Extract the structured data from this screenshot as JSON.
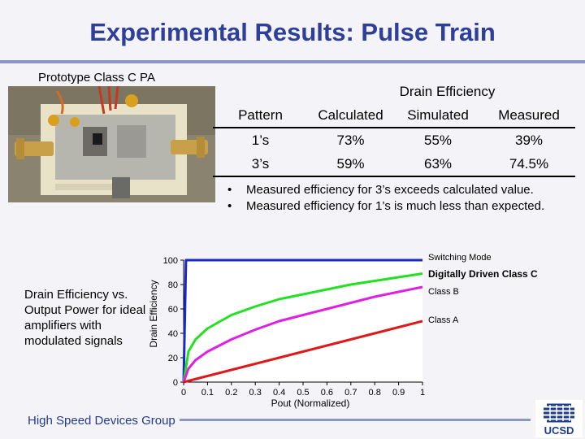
{
  "title": "Experimental Results: Pulse Train",
  "prototype_label": "Prototype Class C PA",
  "table": {
    "group_header": "Drain Efficiency",
    "headers": [
      "Pattern",
      "Calculated",
      "Simulated",
      "Measured"
    ],
    "rows": [
      [
        "1’s",
        "73%",
        "55%",
        "39%"
      ],
      [
        "3’s",
        "59%",
        "63%",
        "74.5%"
      ]
    ]
  },
  "bullets": [
    "Measured efficiency for 3’s exceeds calculated value.",
    "Measured efficiency for 1’s is much less than expected."
  ],
  "bullet_char": "•",
  "side_caption": "Drain Efficiency vs. Output Power for ideal amplifiers with modulated signals",
  "footer": "High Speed Devices Group",
  "logo_text": "UCSD",
  "colors": {
    "title": "#2d3f9b",
    "switching": "#1a28c8",
    "digital": "#22e022",
    "classb": "#e020e0",
    "classa": "#dd1a1a"
  },
  "chart_data": {
    "type": "line",
    "xlabel": "Pout (Normalized)",
    "ylabel": "Drain Efficiency",
    "xlim": [
      0,
      1
    ],
    "ylim": [
      0,
      100
    ],
    "xticks": [
      "0",
      "0.1",
      "0.2",
      "0.3",
      "0.4",
      "0.5",
      "0.6",
      "0.7",
      "0.8",
      "0.9",
      "1"
    ],
    "yticks": [
      "0",
      "20",
      "40",
      "60",
      "80",
      "100"
    ],
    "series": [
      {
        "name": "Switching Mode",
        "x": [
          0.0,
          0.01,
          0.5,
          1.0
        ],
        "values": [
          0,
          100,
          100,
          100
        ]
      },
      {
        "name": "Digitally Driven Class C",
        "x": [
          0.0,
          0.02,
          0.05,
          0.1,
          0.2,
          0.3,
          0.4,
          0.5,
          0.6,
          0.7,
          0.8,
          0.9,
          1.0
        ],
        "values": [
          0,
          25,
          35,
          44,
          55,
          62,
          68,
          72,
          76,
          80,
          83,
          86,
          89
        ]
      },
      {
        "name": "Class B",
        "x": [
          0.0,
          0.02,
          0.05,
          0.1,
          0.2,
          0.3,
          0.4,
          0.5,
          0.6,
          0.7,
          0.8,
          0.9,
          1.0
        ],
        "values": [
          0,
          11,
          18,
          25,
          35,
          43,
          50,
          55,
          60,
          65,
          70,
          74,
          78
        ]
      },
      {
        "name": "Class A",
        "x": [
          0.0,
          0.1,
          0.2,
          0.3,
          0.4,
          0.5,
          0.6,
          0.7,
          0.8,
          0.9,
          1.0
        ],
        "values": [
          0,
          5,
          10,
          15,
          20,
          25,
          30,
          35,
          40,
          45,
          50
        ]
      }
    ]
  }
}
